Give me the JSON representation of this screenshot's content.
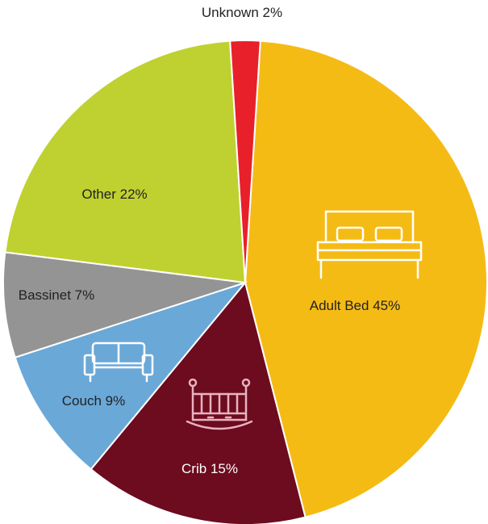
{
  "chart_data": {
    "type": "pie",
    "categories": [
      "Adult Bed",
      "Crib",
      "Couch",
      "Bassinet",
      "Other",
      "Unknown"
    ],
    "values": [
      45,
      15,
      9,
      7,
      22,
      2
    ],
    "value_labels": [
      "45%",
      "15%",
      "9%",
      "7%",
      "22%",
      "2%"
    ],
    "colors": [
      "#f5bb15",
      "#6d0b1f",
      "#6aa8d8",
      "#949494",
      "#bfd130",
      "#e8202a"
    ]
  }
}
